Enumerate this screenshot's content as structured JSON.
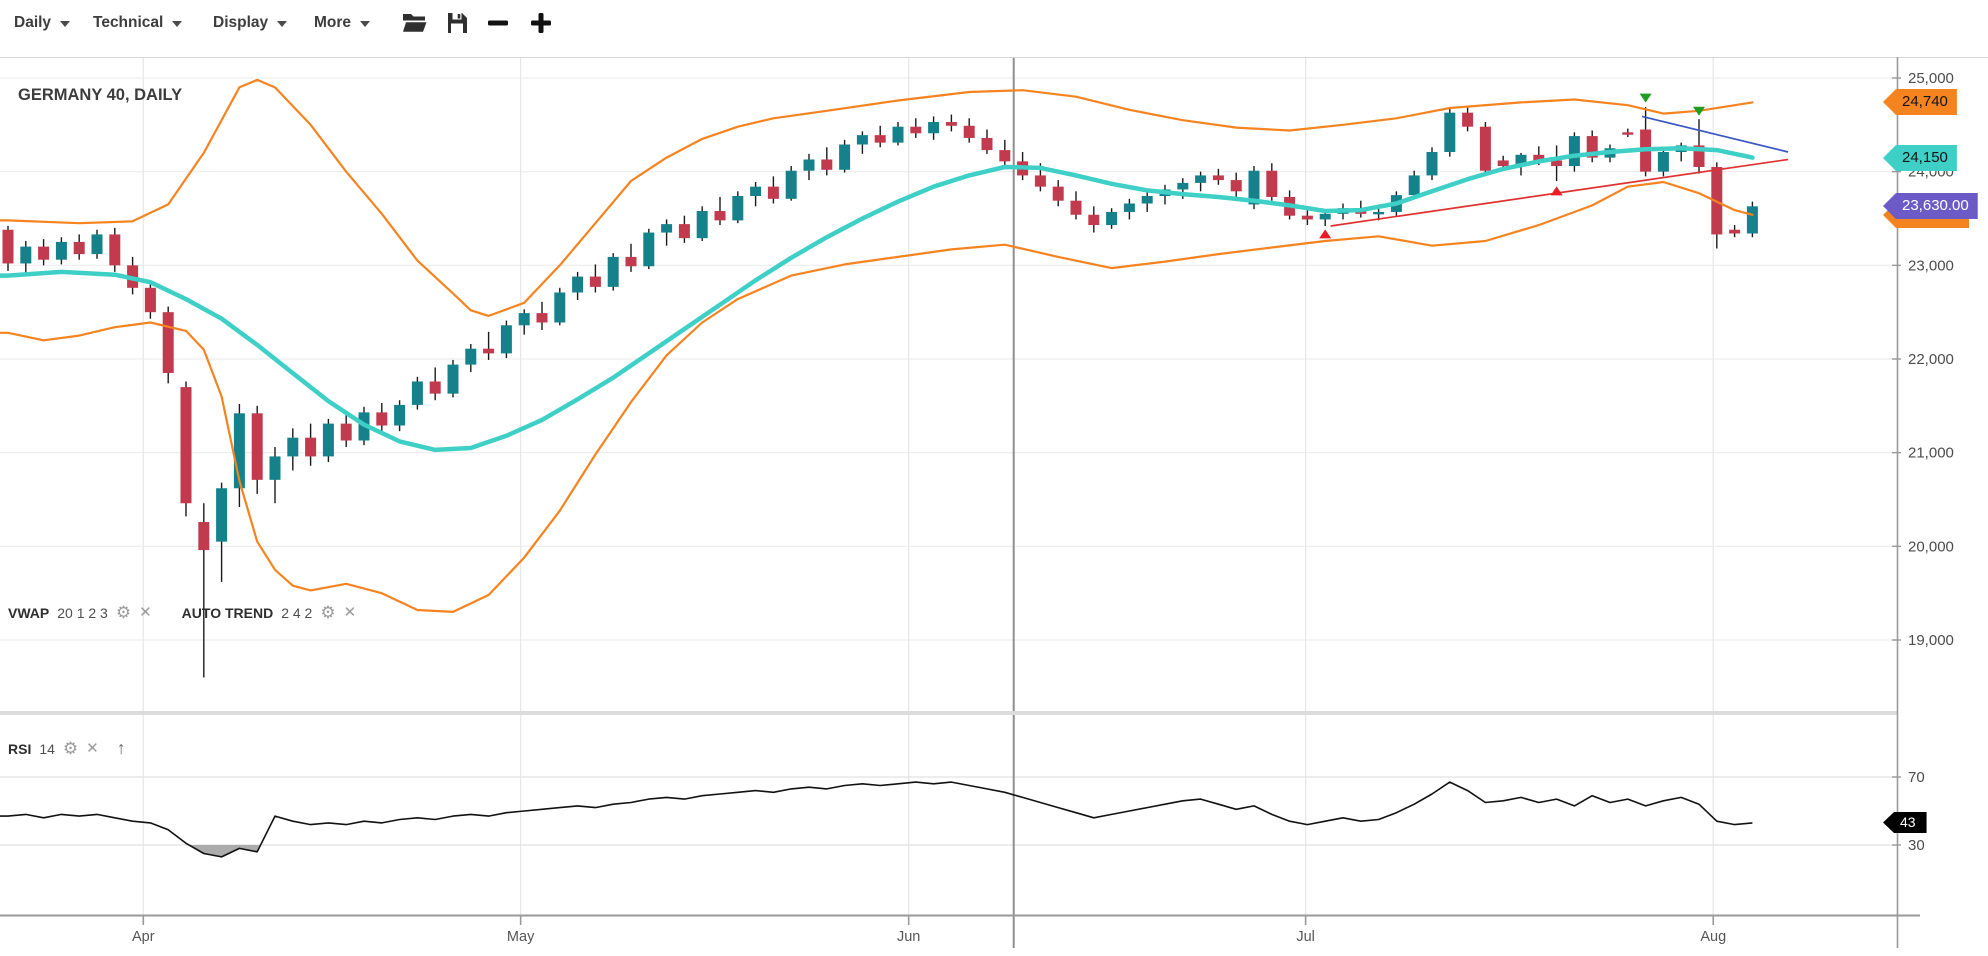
{
  "toolbar": {
    "menus": [
      {
        "label": "Daily"
      },
      {
        "label": "Technical"
      },
      {
        "label": "Display"
      },
      {
        "label": "More"
      }
    ],
    "icons": [
      "folder-open",
      "save",
      "zoom-out",
      "zoom-in"
    ]
  },
  "main": {
    "title": "GERMANY 40, DAILY",
    "legend_vwap": {
      "name": "VWAP",
      "params": "20 1 2 3"
    },
    "legend_autotrend": {
      "name": "AUTO TREND",
      "params": "2 4 2"
    },
    "legend_rsi": {
      "name": "RSI",
      "params": "14"
    }
  },
  "tags": {
    "upper_band": {
      "label": "24,740"
    },
    "vwap": {
      "label": "24,150"
    },
    "last_price": {
      "label": "23,630.00"
    },
    "rsi": {
      "label": "43"
    }
  },
  "colors": {
    "up": "#15828b",
    "down": "#c23a4e",
    "band": "#f5831f",
    "vwap": "#3ecfc6",
    "trend_blue": "#3a56c4",
    "trend_red": "#e03131",
    "marker_green": "#1f9d23",
    "marker_red": "#ed1c24",
    "rsi": "#111111",
    "tag_upper_bg": "#f5831f",
    "tag_vwap_bg": "#3ecfc6",
    "tag_last_bg": "#6c5ac7",
    "tag_rsi_bg": "#000000"
  },
  "chart_data": {
    "type": "candlestick",
    "title": "GERMANY 40, DAILY",
    "price_ticks": [
      {
        "v": 25000,
        "label": "25,000"
      },
      {
        "v": 24000,
        "label": "24,000"
      },
      {
        "v": 23000,
        "label": "23,000"
      },
      {
        "v": 22000,
        "label": "22,000"
      },
      {
        "v": 21000,
        "label": "21,000"
      },
      {
        "v": 20000,
        "label": "20,000"
      },
      {
        "v": 19000,
        "label": "19,000"
      }
    ],
    "rsi_ticks": [
      {
        "v": 70,
        "label": "70"
      },
      {
        "v": 30,
        "label": "30"
      }
    ],
    "month_ticks": [
      {
        "i": 7.6,
        "label": "Apr"
      },
      {
        "i": 28.8,
        "label": "May"
      },
      {
        "i": 50.6,
        "label": "Jun"
      },
      {
        "i": 72.9,
        "label": "Jul"
      },
      {
        "i": 95.8,
        "label": "Aug"
      }
    ],
    "separator_i": 56.5,
    "candles": [
      [
        23380,
        23420,
        22940,
        23020
      ],
      [
        23020,
        23260,
        22900,
        23200
      ],
      [
        23200,
        23280,
        23000,
        23060
      ],
      [
        23060,
        23300,
        23010,
        23250
      ],
      [
        23250,
        23330,
        23060,
        23120
      ],
      [
        23120,
        23380,
        23070,
        23330
      ],
      [
        23330,
        23400,
        22930,
        23000
      ],
      [
        23000,
        23090,
        22690,
        22760
      ],
      [
        22760,
        22840,
        22430,
        22500
      ],
      [
        22500,
        22560,
        21740,
        21850
      ],
      [
        21700,
        21760,
        20320,
        20460
      ],
      [
        20260,
        20460,
        18600,
        19960
      ],
      [
        20050,
        20680,
        19620,
        20620
      ],
      [
        20620,
        21520,
        20420,
        21420
      ],
      [
        21420,
        21500,
        20560,
        20710
      ],
      [
        20710,
        21060,
        20460,
        20960
      ],
      [
        20960,
        21260,
        20810,
        21160
      ],
      [
        21160,
        21310,
        20860,
        20960
      ],
      [
        20960,
        21360,
        20900,
        21310
      ],
      [
        21310,
        21430,
        21060,
        21130
      ],
      [
        21130,
        21490,
        21080,
        21430
      ],
      [
        21430,
        21530,
        21210,
        21290
      ],
      [
        21290,
        21560,
        21230,
        21510
      ],
      [
        21510,
        21810,
        21460,
        21760
      ],
      [
        21760,
        21910,
        21560,
        21630
      ],
      [
        21630,
        21990,
        21590,
        21940
      ],
      [
        21940,
        22160,
        21860,
        22110
      ],
      [
        22110,
        22290,
        21990,
        22060
      ],
      [
        22060,
        22410,
        22010,
        22360
      ],
      [
        22360,
        22530,
        22260,
        22490
      ],
      [
        22490,
        22610,
        22310,
        22390
      ],
      [
        22390,
        22760,
        22360,
        22710
      ],
      [
        22710,
        22930,
        22630,
        22880
      ],
      [
        22880,
        23010,
        22710,
        22770
      ],
      [
        22770,
        23130,
        22730,
        23090
      ],
      [
        23090,
        23230,
        22930,
        22990
      ],
      [
        22990,
        23390,
        22960,
        23350
      ],
      [
        23350,
        23490,
        23210,
        23440
      ],
      [
        23440,
        23530,
        23240,
        23290
      ],
      [
        23290,
        23630,
        23260,
        23580
      ],
      [
        23580,
        23730,
        23430,
        23480
      ],
      [
        23480,
        23790,
        23450,
        23740
      ],
      [
        23740,
        23890,
        23630,
        23840
      ],
      [
        23840,
        23950,
        23660,
        23710
      ],
      [
        23710,
        24060,
        23690,
        24010
      ],
      [
        24010,
        24190,
        23910,
        24130
      ],
      [
        24130,
        24260,
        23960,
        24020
      ],
      [
        24020,
        24340,
        23990,
        24290
      ],
      [
        24290,
        24430,
        24190,
        24390
      ],
      [
        24390,
        24490,
        24260,
        24310
      ],
      [
        24310,
        24530,
        24280,
        24480
      ],
      [
        24480,
        24570,
        24360,
        24410
      ],
      [
        24410,
        24590,
        24340,
        24530
      ],
      [
        24530,
        24610,
        24430,
        24490
      ],
      [
        24490,
        24570,
        24310,
        24360
      ],
      [
        24360,
        24450,
        24190,
        24230
      ],
      [
        24230,
        24340,
        24060,
        24110
      ],
      [
        24110,
        24210,
        23910,
        23960
      ],
      [
        23960,
        24090,
        23790,
        23840
      ],
      [
        23840,
        23910,
        23630,
        23690
      ],
      [
        23690,
        23790,
        23490,
        23540
      ],
      [
        23540,
        23630,
        23350,
        23430
      ],
      [
        23430,
        23610,
        23390,
        23570
      ],
      [
        23570,
        23710,
        23490,
        23660
      ],
      [
        23660,
        23790,
        23570,
        23740
      ],
      [
        23740,
        23860,
        23650,
        23810
      ],
      [
        23810,
        23930,
        23710,
        23880
      ],
      [
        23880,
        24000,
        23790,
        23960
      ],
      [
        23960,
        24030,
        23860,
        23910
      ],
      [
        23910,
        23990,
        23730,
        23790
      ],
      [
        23650,
        24060,
        23600,
        24010
      ],
      [
        24010,
        24090,
        23690,
        23730
      ],
      [
        23730,
        23800,
        23490,
        23530
      ],
      [
        23530,
        23610,
        23430,
        23490
      ],
      [
        23490,
        23590,
        23420,
        23550
      ],
      [
        23550,
        23660,
        23490,
        23610
      ],
      [
        23610,
        23690,
        23510,
        23550
      ],
      [
        23550,
        23650,
        23480,
        23570
      ],
      [
        23570,
        23790,
        23530,
        23750
      ],
      [
        23750,
        24010,
        23710,
        23960
      ],
      [
        23960,
        24260,
        23910,
        24210
      ],
      [
        24210,
        24670,
        24160,
        24630
      ],
      [
        24630,
        24690,
        24430,
        24480
      ],
      [
        24480,
        24530,
        23970,
        24010
      ],
      [
        24120,
        24170,
        24020,
        24060
      ],
      [
        24060,
        24200,
        23960,
        24180
      ],
      [
        24180,
        24270,
        24070,
        24120
      ],
      [
        24120,
        24280,
        23900,
        24060
      ],
      [
        24060,
        24420,
        24000,
        24380
      ],
      [
        24380,
        24440,
        24100,
        24150
      ],
      [
        24150,
        24290,
        24100,
        24250
      ],
      [
        24420,
        24460,
        24370,
        24400
      ],
      [
        24450,
        24690,
        23950,
        24000
      ],
      [
        24000,
        24240,
        23950,
        24210
      ],
      [
        24210,
        24310,
        24110,
        24280
      ],
      [
        24280,
        24560,
        23980,
        24050
      ],
      [
        24050,
        24100,
        23180,
        23330
      ],
      [
        23380,
        23430,
        23300,
        23340
      ],
      [
        23340,
        23680,
        23300,
        23630
      ]
    ],
    "vwap": [
      [
        0,
        22890
      ],
      [
        3,
        22930
      ],
      [
        6,
        22900
      ],
      [
        8,
        22820
      ],
      [
        10,
        22640
      ],
      [
        12,
        22430
      ],
      [
        14,
        22150
      ],
      [
        16,
        21850
      ],
      [
        18,
        21550
      ],
      [
        20,
        21300
      ],
      [
        22,
        21120
      ],
      [
        24,
        21030
      ],
      [
        26,
        21050
      ],
      [
        28,
        21180
      ],
      [
        30,
        21350
      ],
      [
        32,
        21570
      ],
      [
        34,
        21800
      ],
      [
        36,
        22060
      ],
      [
        38,
        22320
      ],
      [
        40,
        22580
      ],
      [
        42,
        22840
      ],
      [
        44,
        23080
      ],
      [
        46,
        23300
      ],
      [
        48,
        23500
      ],
      [
        50,
        23680
      ],
      [
        52,
        23840
      ],
      [
        54,
        23960
      ],
      [
        56,
        24050
      ],
      [
        58,
        24040
      ],
      [
        60,
        23960
      ],
      [
        62,
        23870
      ],
      [
        64,
        23800
      ],
      [
        66,
        23760
      ],
      [
        68,
        23730
      ],
      [
        70,
        23690
      ],
      [
        72,
        23640
      ],
      [
        74,
        23580
      ],
      [
        76,
        23590
      ],
      [
        78,
        23660
      ],
      [
        80,
        23790
      ],
      [
        82,
        23920
      ],
      [
        84,
        24030
      ],
      [
        86,
        24110
      ],
      [
        88,
        24170
      ],
      [
        90,
        24210
      ],
      [
        92,
        24240
      ],
      [
        94,
        24250
      ],
      [
        96,
        24230
      ],
      [
        98,
        24150
      ]
    ],
    "band_upper": [
      [
        0,
        23480
      ],
      [
        4,
        23450
      ],
      [
        7,
        23470
      ],
      [
        9,
        23650
      ],
      [
        11,
        24200
      ],
      [
        13,
        24900
      ],
      [
        14,
        24980
      ],
      [
        15,
        24900
      ],
      [
        17,
        24500
      ],
      [
        19,
        24000
      ],
      [
        21,
        23550
      ],
      [
        23,
        23050
      ],
      [
        25,
        22700
      ],
      [
        26,
        22520
      ],
      [
        27,
        22460
      ],
      [
        29,
        22600
      ],
      [
        31,
        23000
      ],
      [
        33,
        23450
      ],
      [
        35,
        23900
      ],
      [
        37,
        24150
      ],
      [
        39,
        24350
      ],
      [
        41,
        24480
      ],
      [
        43,
        24570
      ],
      [
        46,
        24650
      ],
      [
        50,
        24760
      ],
      [
        54,
        24850
      ],
      [
        57,
        24870
      ],
      [
        60,
        24800
      ],
      [
        63,
        24660
      ],
      [
        66,
        24550
      ],
      [
        69,
        24470
      ],
      [
        72,
        24440
      ],
      [
        75,
        24500
      ],
      [
        78,
        24570
      ],
      [
        81,
        24680
      ],
      [
        85,
        24740
      ],
      [
        88,
        24770
      ],
      [
        91,
        24710
      ],
      [
        93,
        24620
      ],
      [
        95,
        24650
      ],
      [
        98,
        24740
      ]
    ],
    "band_lower": [
      [
        0,
        22280
      ],
      [
        2,
        22200
      ],
      [
        4,
        22250
      ],
      [
        6,
        22340
      ],
      [
        8,
        22390
      ],
      [
        10,
        22300
      ],
      [
        11,
        22100
      ],
      [
        12,
        21600
      ],
      [
        13,
        20700
      ],
      [
        14,
        20050
      ],
      [
        15,
        19750
      ],
      [
        16,
        19580
      ],
      [
        17,
        19530
      ],
      [
        19,
        19600
      ],
      [
        21,
        19500
      ],
      [
        23,
        19320
      ],
      [
        25,
        19300
      ],
      [
        27,
        19480
      ],
      [
        29,
        19880
      ],
      [
        31,
        20380
      ],
      [
        33,
        20980
      ],
      [
        35,
        21540
      ],
      [
        37,
        22040
      ],
      [
        39,
        22390
      ],
      [
        41,
        22640
      ],
      [
        44,
        22890
      ],
      [
        47,
        23010
      ],
      [
        50,
        23090
      ],
      [
        53,
        23170
      ],
      [
        56,
        23220
      ],
      [
        59,
        23090
      ],
      [
        62,
        22970
      ],
      [
        65,
        23040
      ],
      [
        68,
        23120
      ],
      [
        71,
        23190
      ],
      [
        74,
        23260
      ],
      [
        77,
        23310
      ],
      [
        80,
        23210
      ],
      [
        83,
        23260
      ],
      [
        86,
        23430
      ],
      [
        89,
        23640
      ],
      [
        91,
        23840
      ],
      [
        93,
        23890
      ],
      [
        95,
        23770
      ],
      [
        97,
        23590
      ],
      [
        98,
        23540
      ]
    ],
    "trendlines": [
      {
        "color_key": "trend_blue",
        "from": {
          "i": 91.8,
          "p": 24590
        },
        "to": {
          "i": 100,
          "p": 24210
        }
      },
      {
        "color_key": "trend_red",
        "from": {
          "i": 74.3,
          "p": 23420
        },
        "to": {
          "i": 100,
          "p": 24130
        }
      }
    ],
    "markers": [
      {
        "type": "down",
        "i": 92,
        "p": 24790
      },
      {
        "type": "down",
        "i": 95,
        "p": 24650
      },
      {
        "type": "up",
        "i": 74,
        "p": 23330
      },
      {
        "type": "up",
        "i": 87,
        "p": 23790
      }
    ],
    "rsi": [
      47,
      48,
      46,
      48,
      47,
      48,
      46,
      44,
      43,
      39,
      31,
      25,
      23,
      28,
      26,
      47,
      44,
      42,
      43,
      42,
      44,
      43,
      45,
      46,
      45,
      47,
      48,
      47,
      49,
      50,
      51,
      52,
      53,
      52,
      54,
      55,
      57,
      58,
      57,
      59,
      60,
      61,
      62,
      61,
      63,
      64,
      63,
      65,
      66,
      65,
      66,
      67,
      66,
      67,
      65,
      63,
      61,
      58,
      55,
      52,
      49,
      46,
      48,
      50,
      52,
      54,
      56,
      57,
      54,
      51,
      53,
      48,
      44,
      42,
      44,
      46,
      44,
      45,
      49,
      54,
      60,
      67,
      62,
      55,
      56,
      58,
      55,
      57,
      53,
      59,
      55,
      57,
      53,
      56,
      58,
      54,
      44,
      42,
      43
    ],
    "tag_values": {
      "upper": 24740,
      "vwap": 24150,
      "last": 23630,
      "lower": 23540,
      "rsi": 43
    }
  }
}
